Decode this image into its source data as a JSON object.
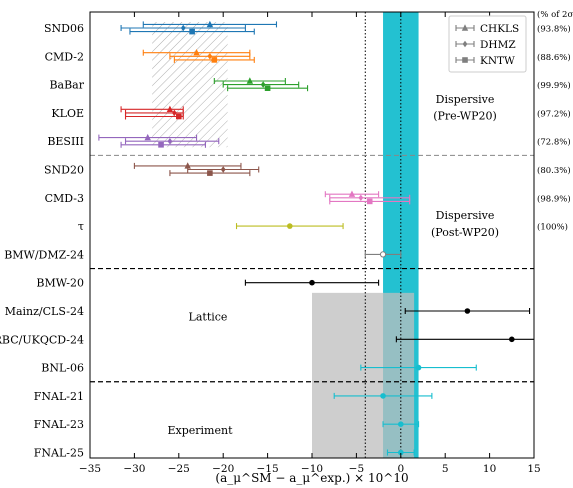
{
  "chart_data": {
    "type": "scatter",
    "orientation": "horizontal-error-bars",
    "xlabel": "(a_μ^SM − a_μ^exp.) × 10^10",
    "xlim": [
      -35,
      15
    ],
    "xticks": [
      -35,
      -30,
      -25,
      -20,
      -15,
      -10,
      -5,
      0,
      5,
      10,
      15
    ],
    "right_header": "(% of 2σ)",
    "legend_position": "top-right",
    "legend": [
      {
        "name": "CHKLS",
        "marker": "triangle"
      },
      {
        "name": "DHMZ",
        "marker": "diamond"
      },
      {
        "name": "KNTW",
        "marker": "square"
      }
    ],
    "section_labels": [
      {
        "text": "Dispersive",
        "row": 2.5
      },
      {
        "text": "(Pre-WP20)",
        "row": 3.1
      },
      {
        "text": "Dispersive",
        "row": 6.6
      },
      {
        "text": "(Post-WP20)",
        "row": 7.2
      },
      {
        "text": "Lattice",
        "row": 10.2
      },
      {
        "text": "Experiment",
        "row": 14.2
      }
    ],
    "bands": [
      {
        "name": "experiment-band",
        "center": 0,
        "xmin": -2,
        "xmax": 2,
        "color": "#17becf"
      },
      {
        "name": "lattice-band",
        "center": -4,
        "xmin": -10,
        "xmax": 1.5,
        "color": "#bdbdbd"
      }
    ],
    "reference_lines": [
      {
        "x": 0,
        "style": "dotted"
      },
      {
        "x": -4,
        "style": "dotted"
      }
    ],
    "hatched_band": {
      "xmin": -28,
      "xmax": -19.5,
      "row_from": 0,
      "row_to": 4
    },
    "separators": [
      {
        "after_row": 4.5,
        "style": "dashed-grey"
      },
      {
        "after_row": 8.5,
        "style": "dashed-black"
      },
      {
        "after_row": 12.5,
        "style": "dashed-black"
      }
    ],
    "rows": [
      {
        "label": "SND06",
        "percent": "(93.8%)",
        "color": "#1f77b4",
        "points": [
          {
            "marker": "triangle",
            "value": -21.5,
            "lo": -29,
            "hi": -14
          },
          {
            "marker": "diamond",
            "value": -24.5,
            "lo": -31.5,
            "hi": -17.5
          },
          {
            "marker": "square",
            "value": -23.5,
            "lo": -30.5,
            "hi": -16.5
          }
        ]
      },
      {
        "label": "CMD-2",
        "percent": "(88.6%)",
        "color": "#ff7f0e",
        "points": [
          {
            "marker": "triangle",
            "value": -23,
            "lo": -29,
            "hi": -17
          },
          {
            "marker": "diamond",
            "value": -21.5,
            "lo": -26,
            "hi": -17
          },
          {
            "marker": "square",
            "value": -21,
            "lo": -25.5,
            "hi": -16.5
          }
        ]
      },
      {
        "label": "BaBar",
        "percent": "(99.9%)",
        "color": "#2ca02c",
        "points": [
          {
            "marker": "triangle",
            "value": -17,
            "lo": -21,
            "hi": -13
          },
          {
            "marker": "diamond",
            "value": -15.5,
            "lo": -20,
            "hi": -11.5
          },
          {
            "marker": "square",
            "value": -15,
            "lo": -19.5,
            "hi": -10.5
          }
        ]
      },
      {
        "label": "KLOE",
        "percent": "(97.2%)",
        "color": "#d62728",
        "points": [
          {
            "marker": "triangle",
            "value": -26,
            "lo": -31.5,
            "hi": -24.5
          },
          {
            "marker": "diamond",
            "value": -25.5,
            "lo": -31,
            "hi": -24.5
          },
          {
            "marker": "square",
            "value": -25,
            "lo": -31,
            "hi": -24.5
          }
        ]
      },
      {
        "label": "BESIII",
        "percent": "(72.8%)",
        "color": "#9467bd",
        "points": [
          {
            "marker": "triangle",
            "value": -28.5,
            "lo": -34,
            "hi": -23
          },
          {
            "marker": "diamond",
            "value": -26,
            "lo": -31,
            "hi": -20.5
          },
          {
            "marker": "square",
            "value": -27,
            "lo": -31.5,
            "hi": -22
          }
        ]
      },
      {
        "label": "SND20",
        "percent": "(80.3%)",
        "color": "#8c564b",
        "points": [
          {
            "marker": "triangle",
            "value": -24,
            "lo": -30,
            "hi": -18
          },
          {
            "marker": "diamond",
            "value": -20,
            "lo": -24,
            "hi": -16
          },
          {
            "marker": "square",
            "value": -21.5,
            "lo": -26,
            "hi": -17
          }
        ]
      },
      {
        "label": "CMD-3",
        "percent": "(98.9%)",
        "color": "#e377c2",
        "points": [
          {
            "marker": "triangle",
            "value": -5.5,
            "lo": -8.5,
            "hi": -2.5
          },
          {
            "marker": "diamond",
            "value": -4.5,
            "lo": -8,
            "hi": 1
          },
          {
            "marker": "square",
            "value": -3.5,
            "lo": -8,
            "hi": 1
          }
        ]
      },
      {
        "label": "τ",
        "percent": "(100%)",
        "color": "#bcbd22",
        "points": [
          {
            "marker": "circle",
            "value": -12.5,
            "lo": -18.5,
            "hi": -6.5
          }
        ]
      },
      {
        "label": "BMW/DMZ-24",
        "percent": "",
        "color": "#7f7f7f",
        "points": [
          {
            "marker": "open-circle",
            "value": -2,
            "lo": -4,
            "hi": 0
          }
        ]
      },
      {
        "label": "BMW-20",
        "percent": "",
        "color": "#000000",
        "points": [
          {
            "marker": "circle",
            "value": -10,
            "lo": -17.5,
            "hi": -2.5
          }
        ]
      },
      {
        "label": "Mainz/CLS-24",
        "percent": "",
        "color": "#000000",
        "points": [
          {
            "marker": "circle",
            "value": 7.5,
            "lo": 0.5,
            "hi": 14.5
          }
        ]
      },
      {
        "label": "RBC/UKQCD-24",
        "percent": "",
        "color": "#000000",
        "points": [
          {
            "marker": "circle",
            "value": 12.5,
            "lo": -0.5,
            "hi": 25.5
          }
        ]
      },
      {
        "label": "BNL-06",
        "percent": "",
        "color": "#17becf",
        "points": [
          {
            "marker": "circle",
            "value": 2,
            "lo": -4.5,
            "hi": 8.5
          }
        ]
      },
      {
        "label": "FNAL-21",
        "percent": "",
        "color": "#17becf",
        "points": [
          {
            "marker": "circle",
            "value": -2,
            "lo": -7.5,
            "hi": 3.5
          }
        ]
      },
      {
        "label": "FNAL-23",
        "percent": "",
        "color": "#17becf",
        "points": [
          {
            "marker": "circle",
            "value": 0,
            "lo": -2,
            "hi": 2
          }
        ]
      },
      {
        "label": "FNAL-25",
        "percent": "",
        "color": "#17becf",
        "points": [
          {
            "marker": "circle",
            "value": 0,
            "lo": -1.5,
            "hi": 1.5
          }
        ]
      }
    ]
  }
}
